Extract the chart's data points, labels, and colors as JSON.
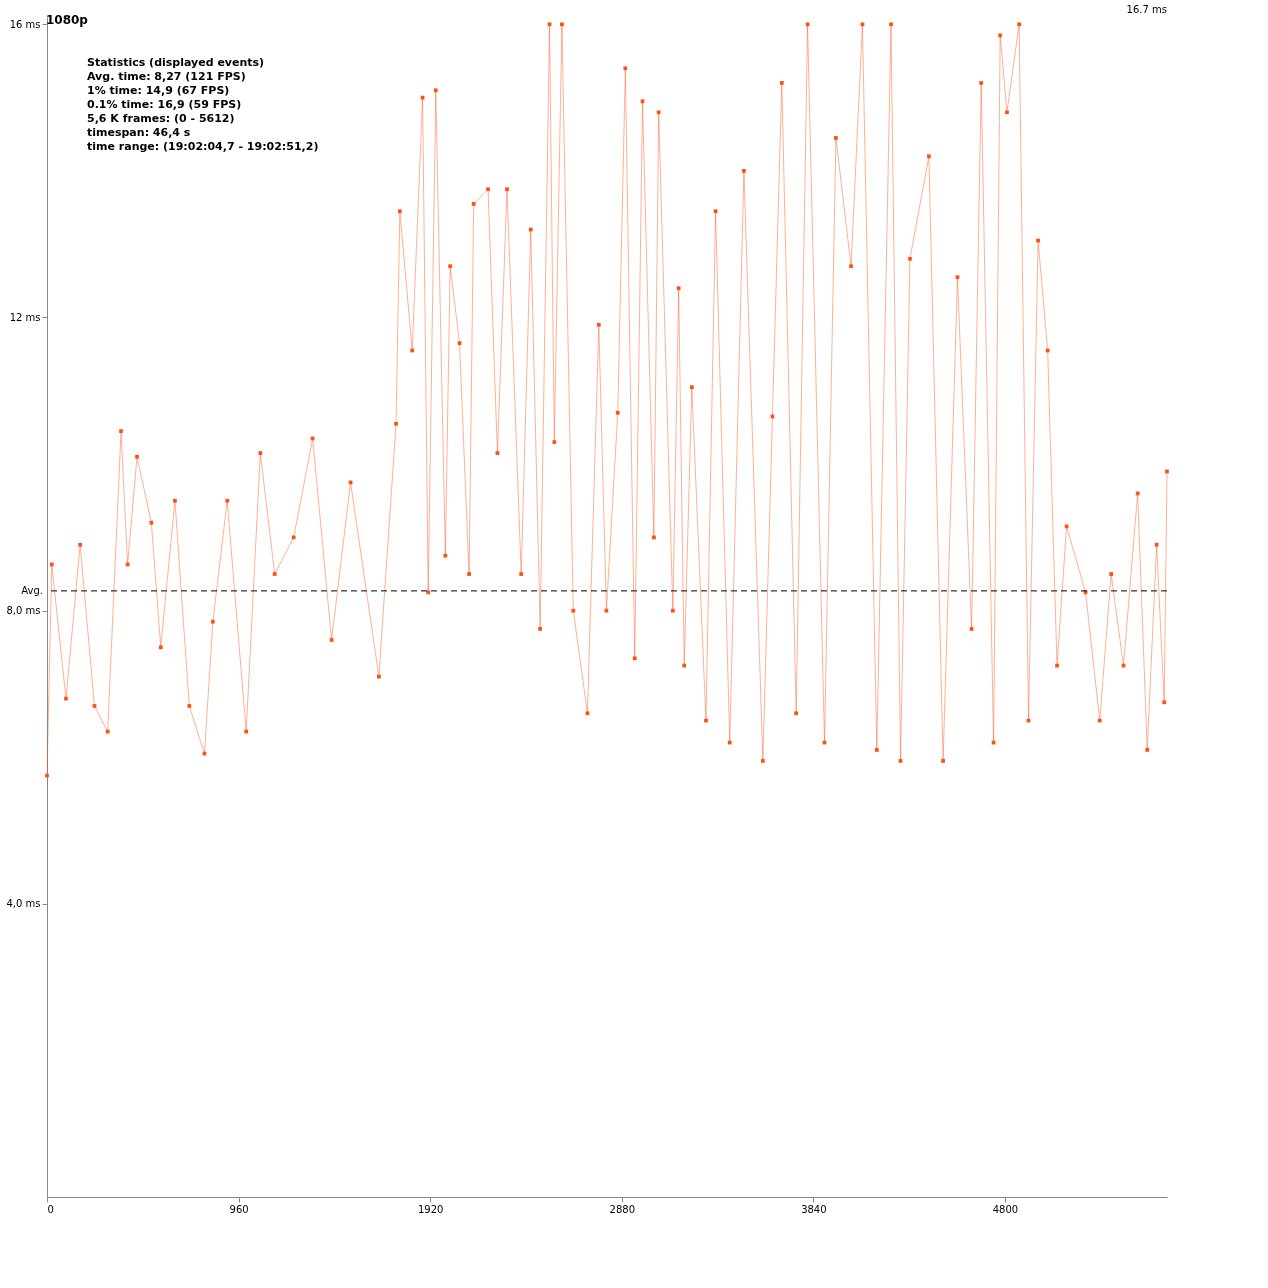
{
  "chart_data": {
    "type": "line",
    "title": "1080p",
    "annotations": [
      "Statistics (displayed events)",
      "Avg. time: 8,27 (121 FPS)",
      "1% time: 14,9 (67 FPS)",
      "0.1% time: 16,9 (59 FPS)",
      "5,6 K frames: (0 - 5612)",
      "timespan: 46,4 s",
      "time range: (19:02:04,7 - 19:02:51,2)",
      "16.7 ms"
    ],
    "x": [
      0,
      24,
      95,
      166,
      238,
      304,
      371,
      404,
      451,
      523,
      570,
      641,
      713,
      789,
      831,
      903,
      998,
      1069,
      1141,
      1236,
      1331,
      1426,
      1521,
      1663,
      1749,
      1768,
      1830,
      1882,
      1910,
      1948,
      1996,
      2020,
      2067,
      2115,
      2138,
      2210,
      2257,
      2305,
      2376,
      2424,
      2471,
      2518,
      2542,
      2580,
      2637,
      2708,
      2765,
      2803,
      2860,
      2898,
      2945,
      2984,
      3041,
      3065,
      3136,
      3165,
      3193,
      3231,
      3302,
      3350,
      3421,
      3492,
      3587,
      3635,
      3682,
      3754,
      3811,
      3896,
      3953,
      4029,
      4086,
      4158,
      4229,
      4277,
      4324,
      4419,
      4490,
      4562,
      4633,
      4681,
      4743,
      4776,
      4810,
      4871,
      4918,
      4966,
      5014,
      5061,
      5109,
      5204,
      5275,
      5332,
      5394,
      5465,
      5513,
      5560,
      5598,
      5612
    ],
    "series": [
      {
        "color": "#ff5014",
        "values": [
          5.75,
          8.63,
          6.8,
          8.9,
          6.7,
          6.35,
          10.45,
          8.63,
          10.1,
          9.2,
          7.5,
          9.5,
          6.7,
          6.05,
          7.85,
          9.5,
          6.35,
          10.15,
          8.5,
          9.0,
          10.35,
          7.6,
          9.75,
          7.1,
          10.55,
          13.45,
          11.55,
          15.0,
          8.25,
          15.1,
          8.75,
          12.7,
          11.65,
          8.5,
          13.55,
          13.75,
          10.15,
          13.75,
          8.5,
          13.2,
          7.75,
          16.0,
          10.3,
          16.0,
          8.0,
          6.6,
          11.9,
          8.0,
          10.7,
          15.4,
          7.35,
          14.95,
          9.0,
          14.8,
          8.0,
          12.4,
          7.25,
          11.05,
          6.5,
          13.45,
          6.2,
          14.0,
          5.95,
          10.65,
          15.2,
          6.6,
          16.0,
          6.2,
          14.45,
          12.7,
          16.0,
          6.1,
          16.0,
          5.95,
          12.8,
          14.2,
          5.95,
          12.55,
          7.75,
          15.2,
          6.2,
          15.85,
          14.8,
          16.0,
          6.5,
          13.05,
          11.55,
          7.25,
          9.15,
          8.25,
          6.5,
          8.5,
          7.25,
          9.6,
          6.1,
          8.9,
          6.75,
          9.9
        ]
      }
    ],
    "xlim": [
      0,
      5612
    ],
    "ylim": [
      0,
      16.1
    ],
    "xticks": [
      0,
      960,
      1920,
      2880,
      3840,
      4800
    ],
    "yticks": [
      {
        "value": 16,
        "label": "16 ms"
      },
      {
        "value": 12,
        "label": "12 ms"
      },
      {
        "value": 8,
        "label": "8,0 ms"
      },
      {
        "value": 4,
        "label": "4,0 ms"
      }
    ],
    "ref_lines": [
      {
        "axis": "y",
        "value": 8.27,
        "label": "Avg.",
        "color": "#000000",
        "line_style": "dashed"
      }
    ],
    "grid": false,
    "marker": "square",
    "line_style": "solid"
  }
}
